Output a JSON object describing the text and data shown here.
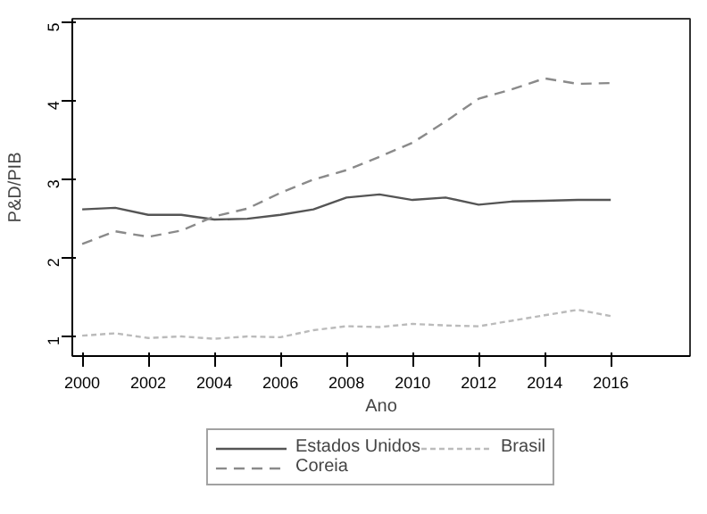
{
  "chart_data": {
    "type": "line",
    "xlabel": "Ano",
    "ylabel": "P&D/PIB",
    "x": [
      2000,
      2001,
      2002,
      2003,
      2004,
      2005,
      2006,
      2007,
      2008,
      2009,
      2010,
      2011,
      2012,
      2013,
      2014,
      2015,
      2016
    ],
    "series": [
      {
        "name": "Estados Unidos",
        "color": "#555555",
        "line_style": "solid",
        "values": [
          2.62,
          2.64,
          2.55,
          2.55,
          2.49,
          2.5,
          2.55,
          2.62,
          2.77,
          2.81,
          2.74,
          2.77,
          2.68,
          2.72,
          2.73,
          2.74,
          2.74
        ]
      },
      {
        "name": "Coreia",
        "color": "#8a8a8a",
        "line_style": "dashed",
        "values": [
          2.18,
          2.34,
          2.27,
          2.35,
          2.53,
          2.63,
          2.83,
          3.0,
          3.12,
          3.29,
          3.47,
          3.74,
          4.03,
          4.15,
          4.29,
          4.22,
          4.23
        ]
      },
      {
        "name": "Brasil",
        "color": "#bbbbbb",
        "line_style": "dotted",
        "values": [
          1.01,
          1.04,
          0.98,
          1.0,
          0.97,
          1.0,
          0.99,
          1.08,
          1.13,
          1.12,
          1.16,
          1.14,
          1.13,
          1.2,
          1.27,
          1.34,
          1.26
        ]
      }
    ],
    "xlim": [
      1999.7,
      2018.4
    ],
    "ylim": [
      0.75,
      5.05
    ],
    "xticks": [
      2000,
      2002,
      2004,
      2006,
      2008,
      2010,
      2012,
      2014,
      2016
    ],
    "yticks": [
      1,
      2,
      3,
      4,
      5
    ],
    "grid": false,
    "legend": "bottom"
  }
}
